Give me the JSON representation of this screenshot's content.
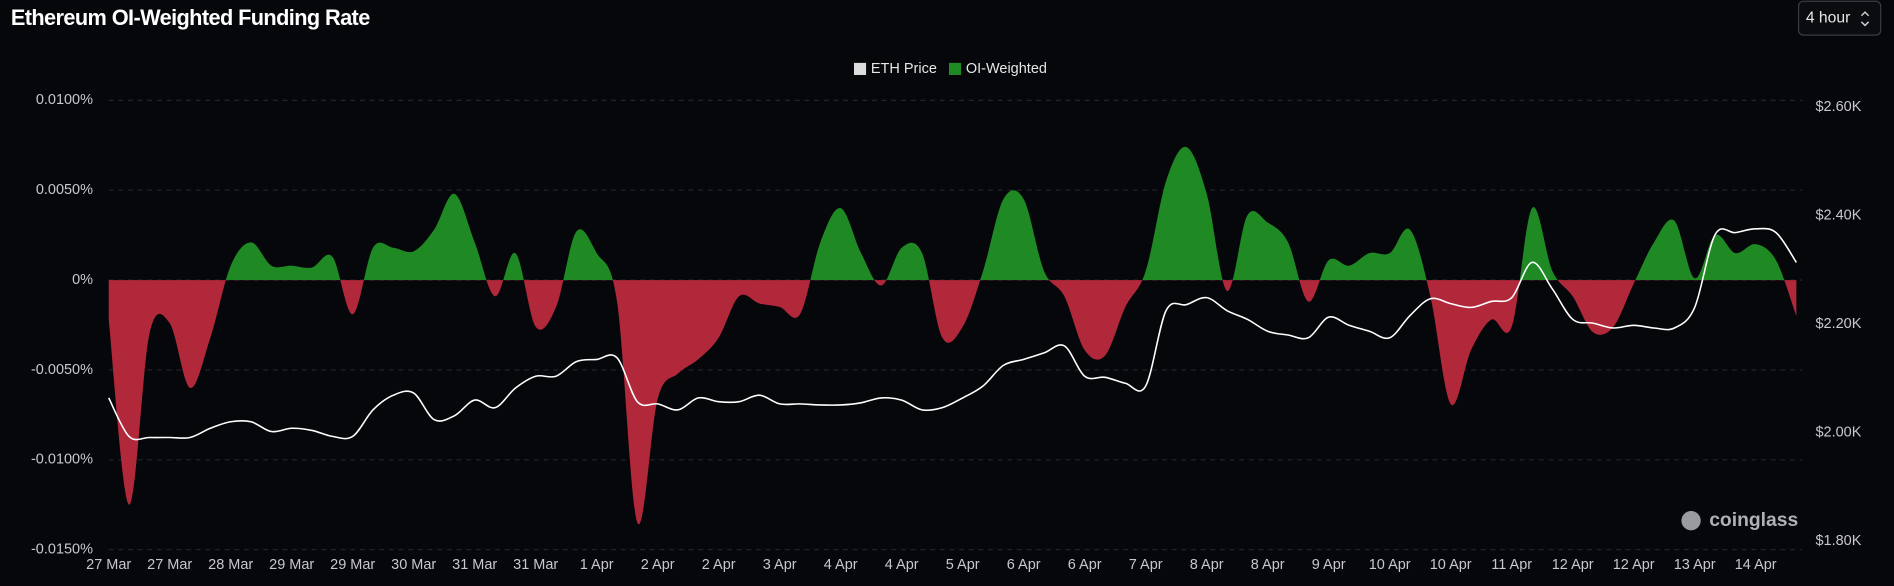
{
  "chart_data": {
    "type": "area",
    "title": "Ethereum OI-Weighted Funding Rate",
    "categories": [
      "27 Mar",
      null,
      null,
      "27 Mar",
      null,
      null,
      "28 Mar",
      null,
      null,
      "29 Mar",
      null,
      null,
      "29 Mar",
      null,
      null,
      "30 Mar",
      null,
      null,
      "31 Mar",
      null,
      null,
      "31 Mar",
      null,
      null,
      "1 Apr",
      null,
      null,
      "2 Apr",
      null,
      null,
      "2 Apr",
      null,
      null,
      "3 Apr",
      null,
      null,
      "4 Apr",
      null,
      null,
      "4 Apr",
      null,
      null,
      "5 Apr",
      null,
      null,
      "6 Apr",
      null,
      null,
      "6 Apr",
      null,
      null,
      "7 Apr",
      null,
      null,
      "8 Apr",
      null,
      null,
      "8 Apr",
      null,
      null,
      "9 Apr",
      null,
      null,
      "10 Apr",
      null,
      null,
      "10 Apr",
      null,
      null,
      "11 Apr",
      null,
      null,
      "12 Apr",
      null,
      null,
      "12 Apr",
      null,
      null,
      "13 Apr",
      null,
      null,
      "14 Apr",
      null,
      null
    ],
    "series": [
      {
        "name": "ETH Price",
        "type": "line",
        "axis": "y2",
        "color": "#ffffff",
        "legend_color": "#dddddd",
        "values": [
          2064,
          1993,
          1991,
          1991,
          1991,
          2008,
          2020,
          2020,
          2002,
          2008,
          2004,
          1993,
          1993,
          2042,
          2069,
          2073,
          2024,
          2031,
          2060,
          2046,
          2082,
          2104,
          2104,
          2131,
          2135,
          2138,
          2057,
          2053,
          2042,
          2064,
          2057,
          2057,
          2069,
          2053,
          2053,
          2051,
          2051,
          2055,
          2064,
          2060,
          2042,
          2046,
          2064,
          2086,
          2124,
          2135,
          2147,
          2160,
          2104,
          2102,
          2091,
          2086,
          2225,
          2236,
          2249,
          2225,
          2209,
          2187,
          2180,
          2175,
          2213,
          2198,
          2187,
          2175,
          2216,
          2247,
          2238,
          2231,
          2242,
          2249,
          2314,
          2265,
          2209,
          2202,
          2193,
          2198,
          2193,
          2193,
          2231,
          2365,
          2369,
          2376,
          2369,
          2314
        ]
      },
      {
        "name": "OI-Weighted",
        "type": "area",
        "color": "#1f8a24",
        "negative_color": "#b0283a",
        "values": [
          -0.0022,
          -0.0125,
          -0.003,
          -0.0024,
          -0.006,
          -0.0032,
          0.0008,
          0.0021,
          0.0008,
          0.0008,
          0.0007,
          0.0013,
          -0.0019,
          0.0018,
          0.0018,
          0.0016,
          0.0028,
          0.0048,
          0.0021,
          -0.0009,
          0.0015,
          -0.0026,
          -0.0015,
          0.0027,
          0.0015,
          -0.0012,
          -0.0135,
          -0.0066,
          -0.0052,
          -0.0044,
          -0.0032,
          -0.0009,
          -0.0013,
          -0.0015,
          -0.0019,
          0.0021,
          0.004,
          0.0015,
          -0.0003,
          0.0018,
          0.0015,
          -0.0032,
          -0.0026,
          0.0005,
          0.0045,
          0.0045,
          0.0005,
          -0.0009,
          -0.0039,
          -0.0042,
          -0.0015,
          0.0005,
          0.0055,
          0.0074,
          0.0048,
          -0.0006,
          0.0036,
          0.0032,
          0.0021,
          -0.0012,
          0.0011,
          0.0008,
          0.0015,
          0.0015,
          0.0028,
          -0.0009,
          -0.0069,
          -0.0039,
          -0.0022,
          -0.0026,
          0.004,
          0.0005,
          -0.0009,
          -0.0029,
          -0.0026,
          -0.0002,
          0.0021,
          0.0033,
          0.0001,
          0.0025,
          0.0015,
          0.002,
          0.0011,
          -0.002
        ]
      }
    ],
    "ylim": [
      -0.015,
      0.01
    ],
    "yticks": [
      {
        "value": 0.01,
        "label": "0.0100%"
      },
      {
        "value": 0.005,
        "label": "0.0050%"
      },
      {
        "value": 0,
        "label": "0%"
      },
      {
        "value": -0.005,
        "label": "-0.0050%"
      },
      {
        "value": -0.01,
        "label": "-0.0100%"
      },
      {
        "value": -0.015,
        "label": "-0.0150%"
      }
    ],
    "y2lim": [
      1784,
      2613
    ],
    "y2ticks": [
      {
        "value": 2600,
        "label": "$2.60K"
      },
      {
        "value": 2400,
        "label": "$2.40K"
      },
      {
        "value": 2200,
        "label": "$2.20K"
      },
      {
        "value": 2000,
        "label": "$2.00K"
      },
      {
        "value": 1800,
        "label": "$1.80K"
      }
    ],
    "grid": true,
    "legend": "top"
  },
  "controls": {
    "interval": "4 hour"
  },
  "watermark": "coinglass"
}
